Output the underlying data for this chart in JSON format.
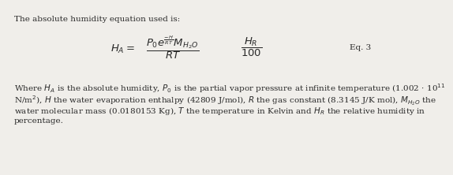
{
  "title_text": "The absolute humidity equation used is:",
  "equation_label": "Eq. 3",
  "body_lines": [
    "Where $H_A$ is the absolute humidity, $P_0$ is the partial vapor pressure at infinite temperature (1.002 · 10$^{11}$",
    "N/m$^2$), $H$ the water evaporation enthalpy (42809 J/mol), $R$ the gas constant (8.3145 J/K mol), $M_{H_2O}$ the",
    "water molecular mass (0.0180153 Kg), $T$ the temperature in Kelvin and $H_R$ the relative humidity in",
    "percentage."
  ],
  "bg_color": "#f0eeea",
  "text_color": "#2a2a2a",
  "font_size": 7.5,
  "eq_font_size": 9.5,
  "eq_label_font_size": 7.5
}
